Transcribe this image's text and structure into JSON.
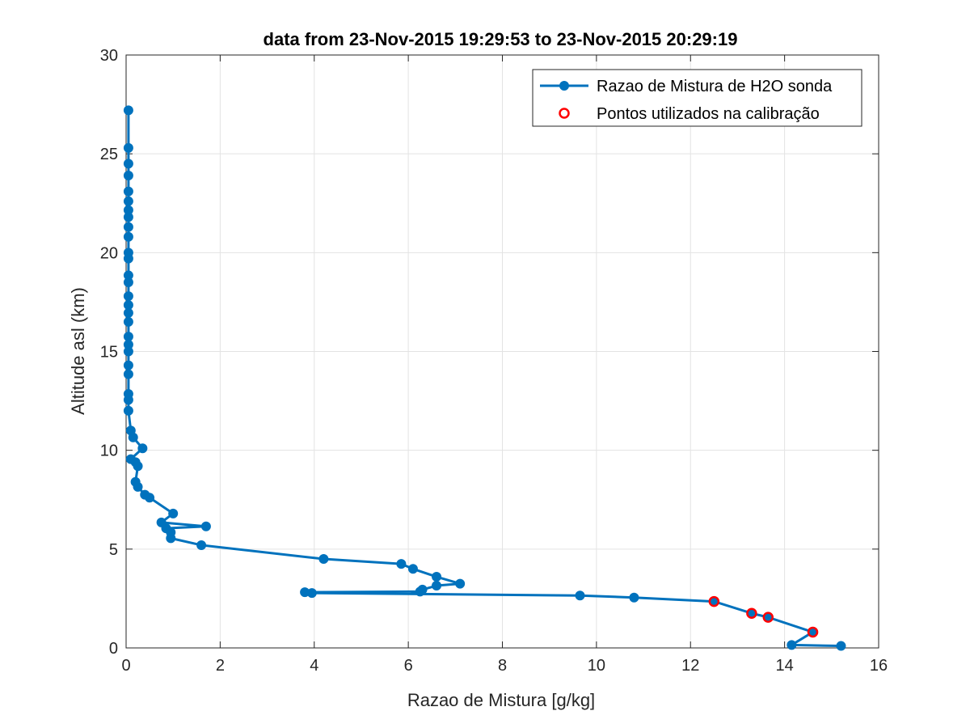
{
  "chart_data": {
    "type": "line",
    "title": "data from 23-Nov-2015 19:29:53 to 23-Nov-2015 20:29:19",
    "xlabel": "Razao de Mistura [g/kg]",
    "ylabel": "Altitude asl (km)",
    "xlim": [
      0,
      16
    ],
    "ylim": [
      0,
      30
    ],
    "xticks": [
      0,
      2,
      4,
      6,
      8,
      10,
      12,
      14,
      16
    ],
    "yticks": [
      0,
      5,
      10,
      15,
      20,
      25,
      30
    ],
    "grid": true,
    "legend_position": "top-right",
    "series": [
      {
        "name": "Razao de Mistura de H2O sonda",
        "color": "#0072BD",
        "marker": "filled-circle",
        "x": [
          15.2,
          14.15,
          14.6,
          13.65,
          13.3,
          12.5,
          10.8,
          9.65,
          3.95,
          3.8,
          6.25,
          6.3,
          6.6,
          7.1,
          6.6,
          6.1,
          5.85,
          4.2,
          1.6,
          0.95,
          0.95,
          0.85,
          1.7,
          0.75,
          1.0,
          0.5,
          0.4,
          0.25,
          0.2,
          0.25,
          0.2,
          0.1,
          0.35,
          0.15,
          0.1,
          0.05,
          0.05,
          0.05,
          0.05,
          0.05,
          0.05,
          0.05,
          0.05,
          0.05,
          0.05,
          0.05,
          0.05,
          0.05,
          0.05,
          0.05,
          0.05,
          0.05,
          0.05,
          0.05,
          0.05,
          0.05,
          0.05,
          0.05,
          0.05,
          0.05,
          0.05
        ],
        "y": [
          0.1,
          0.15,
          0.8,
          1.55,
          1.75,
          2.35,
          2.55,
          2.65,
          2.78,
          2.82,
          2.85,
          2.95,
          3.15,
          3.25,
          3.6,
          4.0,
          4.25,
          4.5,
          5.2,
          5.55,
          5.85,
          6.05,
          6.15,
          6.35,
          6.8,
          7.6,
          7.75,
          8.15,
          8.4,
          9.2,
          9.4,
          9.55,
          10.1,
          10.65,
          11.0,
          12.0,
          12.55,
          12.85,
          13.85,
          14.3,
          15.0,
          15.35,
          15.75,
          16.5,
          16.95,
          17.35,
          17.8,
          18.5,
          18.85,
          19.7,
          20.0,
          20.8,
          21.3,
          21.8,
          22.15,
          22.6,
          23.1,
          23.9,
          24.5,
          25.3,
          27.2
        ]
      },
      {
        "name": "Pontos utilizados na calibração",
        "color": "#FF0000",
        "marker": "open-circle",
        "x": [
          12.5,
          13.3,
          13.65,
          14.6
        ],
        "y": [
          2.35,
          1.75,
          1.55,
          0.8
        ]
      }
    ]
  }
}
